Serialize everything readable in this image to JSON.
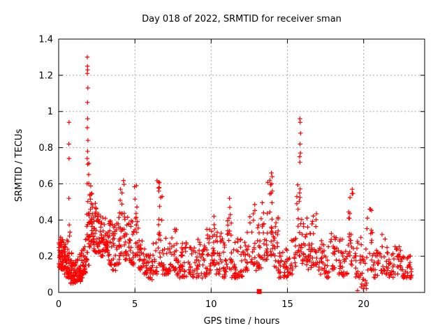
{
  "chart_data": {
    "type": "scatter",
    "title": "Day 018 of 2022, SRMTID for receiver sman",
    "xlabel": "GPS time / hours",
    "ylabel": "SRMTID / TECUs",
    "xlim": [
      0,
      24
    ],
    "ylim": [
      0,
      1.4
    ],
    "xticks": [
      0,
      5,
      10,
      15,
      20
    ],
    "xtick_labels": [
      "0",
      "5",
      "10",
      "15",
      "20"
    ],
    "yticks": [
      0,
      0.2,
      0.4,
      0.6,
      0.8,
      1.0,
      1.2,
      1.4
    ],
    "ytick_labels": [
      "0",
      "0.2",
      "0.4",
      "0.6",
      "0.8",
      "1",
      "1.2",
      "1.4"
    ],
    "grid": true,
    "legend": false,
    "marker": "plus",
    "marker_color": "#ff0000",
    "grid_color": "#a8a8a8",
    "border_color": "#000000",
    "special_square_point": [
      13.15,
      0.005
    ],
    "outlier_points": [
      [
        0.67,
        0.52
      ],
      [
        0.68,
        0.74
      ],
      [
        0.67,
        0.82
      ],
      [
        0.68,
        0.94
      ],
      [
        1.87,
        0.74
      ],
      [
        1.9,
        0.78
      ],
      [
        1.92,
        0.84
      ],
      [
        1.88,
        0.91
      ],
      [
        1.9,
        0.96
      ],
      [
        1.89,
        1.05
      ],
      [
        1.91,
        1.13
      ],
      [
        1.88,
        1.21
      ],
      [
        1.9,
        1.23
      ],
      [
        1.89,
        1.25
      ],
      [
        1.88,
        1.3
      ],
      [
        4.05,
        0.57
      ],
      [
        4.15,
        0.55
      ],
      [
        5.1,
        0.59
      ],
      [
        6.55,
        0.61
      ],
      [
        6.6,
        0.58
      ],
      [
        6.57,
        0.56
      ],
      [
        11.2,
        0.52
      ],
      [
        11.22,
        0.47
      ],
      [
        13.85,
        0.62
      ],
      [
        13.95,
        0.66
      ],
      [
        14.0,
        0.64
      ],
      [
        13.97,
        0.6
      ],
      [
        15.8,
        0.75
      ],
      [
        15.82,
        0.72
      ],
      [
        15.82,
        0.96
      ],
      [
        15.83,
        0.82
      ],
      [
        15.84,
        0.94
      ],
      [
        15.85,
        0.77
      ],
      [
        15.86,
        0.88
      ],
      [
        19.25,
        0.57
      ],
      [
        19.6,
        0.01
      ],
      [
        20.4,
        0.46
      ]
    ],
    "density_bins_format": [
      "t_start_hours",
      "t_end_hours",
      "y_min_TECUs",
      "y_max_TECUs",
      "point_count"
    ],
    "density_bins": [
      [
        0.0,
        0.15,
        0.13,
        0.33,
        22
      ],
      [
        0.15,
        0.3,
        0.12,
        0.3,
        22
      ],
      [
        0.3,
        0.45,
        0.1,
        0.28,
        20
      ],
      [
        0.45,
        0.6,
        0.08,
        0.3,
        20
      ],
      [
        0.6,
        0.75,
        0.08,
        0.38,
        20
      ],
      [
        0.75,
        0.9,
        0.05,
        0.22,
        18
      ],
      [
        0.9,
        1.05,
        0.05,
        0.18,
        16
      ],
      [
        1.05,
        1.2,
        0.05,
        0.18,
        16
      ],
      [
        1.2,
        1.35,
        0.06,
        0.2,
        16
      ],
      [
        1.35,
        1.5,
        0.06,
        0.22,
        16
      ],
      [
        1.5,
        1.65,
        0.08,
        0.25,
        16
      ],
      [
        1.65,
        1.8,
        0.1,
        0.3,
        16
      ],
      [
        1.8,
        2.0,
        0.15,
        0.72,
        26
      ],
      [
        2.0,
        2.15,
        0.25,
        0.62,
        20
      ],
      [
        2.15,
        2.3,
        0.25,
        0.55,
        20
      ],
      [
        2.3,
        2.5,
        0.22,
        0.5,
        22
      ],
      [
        2.5,
        2.75,
        0.22,
        0.46,
        22
      ],
      [
        2.75,
        3.0,
        0.2,
        0.44,
        22
      ],
      [
        3.0,
        3.25,
        0.22,
        0.42,
        22
      ],
      [
        3.25,
        3.5,
        0.15,
        0.4,
        20
      ],
      [
        3.5,
        3.75,
        0.12,
        0.38,
        20
      ],
      [
        3.75,
        4.0,
        0.15,
        0.45,
        20
      ],
      [
        4.0,
        4.35,
        0.2,
        0.62,
        24
      ],
      [
        4.35,
        4.65,
        0.18,
        0.42,
        20
      ],
      [
        4.65,
        4.95,
        0.15,
        0.4,
        20
      ],
      [
        4.95,
        5.25,
        0.2,
        0.6,
        22
      ],
      [
        5.25,
        5.55,
        0.12,
        0.32,
        18
      ],
      [
        5.55,
        5.85,
        0.1,
        0.28,
        18
      ],
      [
        5.85,
        6.15,
        0.07,
        0.22,
        18
      ],
      [
        6.15,
        6.45,
        0.1,
        0.32,
        18
      ],
      [
        6.45,
        6.8,
        0.15,
        0.62,
        22
      ],
      [
        6.8,
        7.1,
        0.1,
        0.3,
        18
      ],
      [
        7.1,
        7.45,
        0.1,
        0.32,
        18
      ],
      [
        7.45,
        7.75,
        0.12,
        0.38,
        18
      ],
      [
        7.75,
        8.1,
        0.08,
        0.25,
        18
      ],
      [
        8.1,
        8.5,
        0.08,
        0.28,
        20
      ],
      [
        8.5,
        8.9,
        0.07,
        0.25,
        20
      ],
      [
        8.9,
        9.3,
        0.08,
        0.3,
        20
      ],
      [
        9.3,
        9.7,
        0.08,
        0.28,
        20
      ],
      [
        9.7,
        10.0,
        0.1,
        0.35,
        18
      ],
      [
        10.0,
        10.3,
        0.15,
        0.45,
        20
      ],
      [
        10.3,
        10.7,
        0.1,
        0.35,
        20
      ],
      [
        10.7,
        11.0,
        0.08,
        0.3,
        18
      ],
      [
        11.0,
        11.35,
        0.12,
        0.45,
        20
      ],
      [
        11.35,
        11.7,
        0.08,
        0.28,
        18
      ],
      [
        11.7,
        12.1,
        0.08,
        0.3,
        20
      ],
      [
        12.1,
        12.5,
        0.12,
        0.38,
        20
      ],
      [
        12.5,
        12.9,
        0.15,
        0.5,
        20
      ],
      [
        12.9,
        13.3,
        0.12,
        0.42,
        20
      ],
      [
        13.3,
        13.7,
        0.18,
        0.55,
        22
      ],
      [
        13.7,
        14.1,
        0.2,
        0.66,
        24
      ],
      [
        14.1,
        14.45,
        0.12,
        0.45,
        20
      ],
      [
        14.45,
        14.8,
        0.08,
        0.25,
        18
      ],
      [
        14.8,
        15.2,
        0.08,
        0.25,
        18
      ],
      [
        15.2,
        15.55,
        0.1,
        0.3,
        18
      ],
      [
        15.55,
        15.95,
        0.2,
        0.62,
        24
      ],
      [
        15.95,
        16.3,
        0.15,
        0.45,
        20
      ],
      [
        16.3,
        16.6,
        0.12,
        0.38,
        18
      ],
      [
        16.6,
        17.0,
        0.15,
        0.47,
        20
      ],
      [
        17.0,
        17.4,
        0.1,
        0.32,
        18
      ],
      [
        17.4,
        17.8,
        0.08,
        0.28,
        18
      ],
      [
        17.8,
        18.2,
        0.1,
        0.35,
        18
      ],
      [
        18.2,
        18.6,
        0.1,
        0.32,
        18
      ],
      [
        18.6,
        19.0,
        0.08,
        0.28,
        18
      ],
      [
        19.0,
        19.45,
        0.15,
        0.57,
        22
      ],
      [
        19.45,
        19.8,
        0.08,
        0.3,
        18
      ],
      [
        19.8,
        20.2,
        0.02,
        0.32,
        20
      ],
      [
        20.2,
        20.65,
        0.12,
        0.46,
        20
      ],
      [
        20.65,
        21.1,
        0.08,
        0.26,
        18
      ],
      [
        21.1,
        21.6,
        0.1,
        0.35,
        22
      ],
      [
        21.6,
        22.1,
        0.08,
        0.28,
        20
      ],
      [
        22.1,
        22.55,
        0.1,
        0.3,
        20
      ],
      [
        22.55,
        22.9,
        0.08,
        0.26,
        18
      ],
      [
        22.9,
        23.15,
        0.08,
        0.24,
        14
      ]
    ]
  }
}
